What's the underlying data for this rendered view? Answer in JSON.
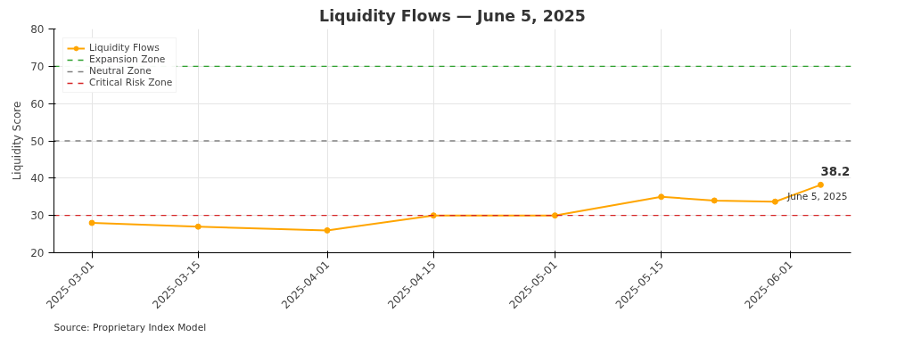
{
  "chart_data": {
    "type": "line",
    "title": "Liquidity Flows — June 5, 2025",
    "ylabel": "Liquidity Score",
    "x": [
      "2025-03-01",
      "2025-03-15",
      "2025-04-01",
      "2025-04-15",
      "2025-05-01",
      "2025-05-15",
      "2025-05-22",
      "2025-05-30",
      "2025-06-05"
    ],
    "series": [
      {
        "name": "Liquidity Flows",
        "color": "#ffa500",
        "values": [
          28,
          27,
          26,
          30,
          30,
          35,
          34,
          33.7,
          38.2
        ]
      }
    ],
    "xlim": [
      "2025-02-24",
      "2025-06-09"
    ],
    "xticks": [
      "2025-03-01",
      "2025-03-15",
      "2025-04-01",
      "2025-04-15",
      "2025-05-01",
      "2025-05-15",
      "2025-06-01"
    ],
    "ylim": [
      20,
      80
    ],
    "yticks": [
      20,
      30,
      40,
      50,
      60,
      70,
      80
    ],
    "ref_lines": [
      {
        "axis": "y",
        "value": 70,
        "label": "Expansion Zone",
        "color": "#2ca02c",
        "line_style": "dashed"
      },
      {
        "axis": "y",
        "value": 50,
        "label": "Neutral Zone",
        "color": "#808080",
        "line_style": "dashed"
      },
      {
        "axis": "y",
        "value": 30,
        "label": "Critical Risk Zone",
        "color": "#d62728",
        "line_style": "dashed"
      }
    ],
    "annotations": [
      {
        "text": "38.2",
        "x": "2025-06-05",
        "y": 38.2
      },
      {
        "text": "June 5, 2025",
        "x": "2025-06-05",
        "y": 38.2
      },
      "Source: Proprietary Index Model"
    ],
    "grid": true,
    "legend": "top left",
    "marker": "circle",
    "line_style": "solid"
  }
}
